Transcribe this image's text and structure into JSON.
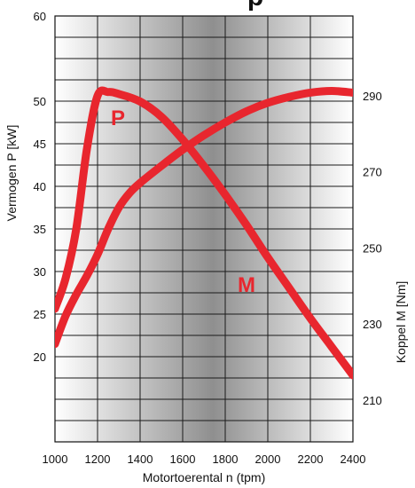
{
  "chart_data": {
    "type": "line",
    "title": "p",
    "xlabel": "Motortoerental n (tpm)",
    "ylabel_left": "Vermogen P [kW]",
    "ylabel_right": "Koppel M [Nm]",
    "xlim": [
      1000,
      2400
    ],
    "ylim_left": [
      10,
      60
    ],
    "ylim_right": [
      199,
      311
    ],
    "x_ticks": [
      "1000",
      "1200",
      "1400",
      "1600",
      "1800",
      "2000",
      "2200",
      "2400"
    ],
    "x_tick_values": [
      1000,
      1200,
      1400,
      1600,
      1800,
      2000,
      2200,
      2400
    ],
    "y_ticks_left": [
      "60",
      "50",
      "45",
      "40",
      "35",
      "30",
      "25",
      "20"
    ],
    "y_tick_values_left": [
      60,
      50,
      45,
      40,
      35,
      30,
      25,
      20
    ],
    "y_ticks_right": [
      "290",
      "270",
      "250",
      "230",
      "210"
    ],
    "y_tick_values_right": [
      290,
      270,
      250,
      230,
      210
    ],
    "grid": true,
    "series": [
      {
        "name": "P",
        "axis": "left",
        "color": "#e8262e",
        "x": [
          1000,
          1050,
          1100,
          1150,
          1200,
          1250,
          1300,
          1350,
          1400,
          1500,
          1600,
          1700,
          1800,
          1900,
          2000,
          2100,
          2200,
          2300,
          2400
        ],
        "y": [
          21.5,
          24.8,
          27.3,
          29.5,
          32.0,
          35.0,
          37.5,
          39.2,
          40.4,
          42.4,
          44.3,
          46.0,
          47.5,
          48.8,
          49.8,
          50.5,
          51.0,
          51.2,
          51.0
        ]
      },
      {
        "name": "M",
        "axis": "right",
        "color": "#e8262e",
        "x": [
          1000,
          1050,
          1100,
          1150,
          1200,
          1250,
          1300,
          1400,
          1500,
          1600,
          1700,
          1800,
          1900,
          2000,
          2100,
          2200,
          2300,
          2400
        ],
        "y": [
          234,
          242,
          255,
          276,
          290,
          291,
          290.5,
          288.5,
          284.5,
          278.5,
          271.5,
          264,
          256,
          247.5,
          239.5,
          231.5,
          224,
          216.5
        ]
      }
    ],
    "background_gradient": [
      "#ffffff",
      "#8f8f8f",
      "#ffffff"
    ]
  }
}
